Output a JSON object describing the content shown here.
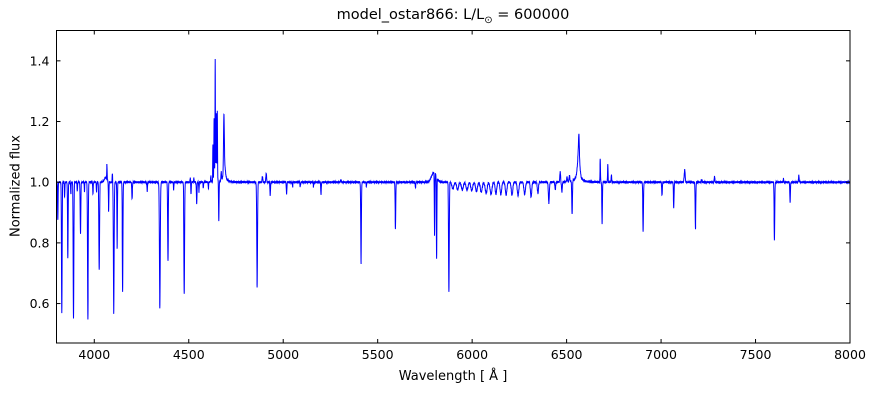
{
  "figure": {
    "title_prefix": "model_ostar866: L/L",
    "title_sub": "⊙",
    "title_suffix": " = 600000",
    "xlabel": "Wavelength [ Å ]",
    "ylabel": "Normalized flux"
  },
  "chart_data": {
    "type": "line",
    "title": "model_ostar866: L/L⊙ = 600000",
    "xlabel": "Wavelength [ Å ]",
    "ylabel": "Normalized flux",
    "xlim": [
      3800,
      8000
    ],
    "ylim": [
      0.47,
      1.5
    ],
    "x_ticks": [
      4000,
      4500,
      5000,
      5500,
      6000,
      6500,
      7000,
      7500,
      8000
    ],
    "y_ticks": [
      0.6,
      0.8,
      1.0,
      1.2,
      1.4
    ],
    "grid": false,
    "legend": "none",
    "line_color": "#0000ff",
    "axis_color": "#000000",
    "background": "#ffffff",
    "continuum": 1.0,
    "sample_step": 0.5,
    "noise": [
      [
        3.1,
        0.002
      ],
      [
        1.3,
        0.0015
      ]
    ],
    "series_name": "normalized_flux",
    "features_comment": "spectral lines: [wavelength_A, peak_or_bottom_flux, sigma_A, optional 'lorentz']",
    "features": [
      [
        3797,
        0.96,
        1.0
      ],
      [
        3807,
        0.875,
        1.3
      ],
      [
        3828,
        0.57,
        1.6
      ],
      [
        3843,
        0.95,
        1.2
      ],
      [
        3860,
        0.75,
        1.6
      ],
      [
        3876,
        0.96,
        1.2
      ],
      [
        3890,
        0.55,
        1.7
      ],
      [
        3910,
        0.97,
        1.2
      ],
      [
        3927,
        0.83,
        1.6
      ],
      [
        3948,
        0.97,
        1.2
      ],
      [
        3966,
        0.55,
        1.8
      ],
      [
        3993,
        0.96,
        1.3
      ],
      [
        4012,
        0.965,
        1.3
      ],
      [
        4026,
        0.71,
        1.8
      ],
      [
        4060,
        1.015,
        7.0
      ],
      [
        4067,
        1.05,
        1.2
      ],
      [
        4076,
        0.9,
        1.3
      ],
      [
        4096,
        1.03,
        1.2
      ],
      [
        4103,
        0.565,
        2.0
      ],
      [
        4121,
        0.78,
        1.4
      ],
      [
        4150,
        0.64,
        1.6
      ],
      [
        4200,
        0.945,
        1.6
      ],
      [
        4280,
        0.97,
        1.3
      ],
      [
        4347,
        0.585,
        2.2
      ],
      [
        4390,
        0.74,
        1.7
      ],
      [
        4420,
        0.975,
        1.2
      ],
      [
        4476,
        0.63,
        1.8
      ],
      [
        4508,
        1.015,
        1.2
      ],
      [
        4512,
        0.96,
        1.2
      ],
      [
        4527,
        1.015,
        1.2
      ],
      [
        4542,
        0.93,
        1.5
      ],
      [
        4554,
        0.965,
        1.2
      ],
      [
        4577,
        0.98,
        1.2
      ],
      [
        4604,
        0.98,
        1.2
      ],
      [
        4617,
        1.02,
        1.5
      ],
      [
        4628,
        1.12,
        1.0
      ],
      [
        4634,
        1.19,
        1.2
      ],
      [
        4640,
        1.35,
        0.9
      ],
      [
        4646,
        1.17,
        1.1
      ],
      [
        4651,
        1.21,
        1.0
      ],
      [
        4643,
        1.06,
        6.0
      ],
      [
        4659,
        0.87,
        1.3
      ],
      [
        4672,
        1.03,
        1.5
      ],
      [
        4686,
        1.17,
        1.9
      ],
      [
        4689,
        1.07,
        5.5,
        "lorentz"
      ],
      [
        4862,
        0.655,
        2.0
      ],
      [
        4890,
        1.02,
        1.8
      ],
      [
        4910,
        1.03,
        1.8
      ],
      [
        4931,
        0.955,
        1.4
      ],
      [
        5018,
        0.96,
        1.4
      ],
      [
        5050,
        0.985,
        1.2
      ],
      [
        5090,
        0.985,
        1.2
      ],
      [
        5160,
        0.985,
        1.2
      ],
      [
        5200,
        0.96,
        1.4
      ],
      [
        5305,
        1.008,
        2.0
      ],
      [
        5412,
        0.73,
        1.7
      ],
      [
        5440,
        0.985,
        1.2
      ],
      [
        5594,
        0.845,
        1.6
      ],
      [
        5700,
        0.98,
        1.3
      ],
      [
        5798,
        1.032,
        13.0
      ],
      [
        5801,
        0.79,
        1.3
      ],
      [
        5812,
        0.73,
        1.3
      ],
      [
        5877,
        0.64,
        1.8
      ],
      [
        5898,
        0.978,
        5.0
      ],
      [
        5923,
        0.975,
        5.0
      ],
      [
        5948,
        0.975,
        5.0
      ],
      [
        5973,
        0.973,
        5.0
      ],
      [
        5998,
        0.972,
        5.0
      ],
      [
        6023,
        0.97,
        5.0
      ],
      [
        6048,
        0.967,
        5.0
      ],
      [
        6074,
        0.963,
        5.0
      ],
      [
        6100,
        0.96,
        5.0
      ],
      [
        6126,
        0.96,
        4.0
      ],
      [
        6152,
        0.958,
        4.0
      ],
      [
        6180,
        0.957,
        4.0
      ],
      [
        6211,
        0.957,
        4.0
      ],
      [
        6243,
        0.955,
        4.0
      ],
      [
        6278,
        0.96,
        4.0
      ],
      [
        6312,
        0.952,
        3.5
      ],
      [
        6348,
        0.965,
        3.0
      ],
      [
        6406,
        0.93,
        2.5
      ],
      [
        6440,
        0.975,
        2.0
      ],
      [
        6466,
        1.035,
        1.8
      ],
      [
        6475,
        0.968,
        2.0
      ],
      [
        6502,
        1.015,
        2.0
      ],
      [
        6515,
        1.02,
        2.0
      ],
      [
        6529,
        0.89,
        1.7
      ],
      [
        6562,
        1.03,
        14.0,
        "lorentz"
      ],
      [
        6564,
        1.07,
        5.5
      ],
      [
        6565,
        1.06,
        2.0
      ],
      [
        6678,
        1.08,
        1.2
      ],
      [
        6688,
        0.865,
        1.5
      ],
      [
        6718,
        1.06,
        1.2
      ],
      [
        6737,
        1.025,
        1.3
      ],
      [
        6905,
        0.84,
        1.7
      ],
      [
        7005,
        0.955,
        1.5
      ],
      [
        7067,
        0.915,
        1.6
      ],
      [
        7125,
        1.04,
        2.5
      ],
      [
        7182,
        0.845,
        1.7
      ],
      [
        7215,
        1.01,
        1.5
      ],
      [
        7283,
        1.02,
        1.6
      ],
      [
        7600,
        0.81,
        1.7
      ],
      [
        7648,
        1.01,
        1.5
      ],
      [
        7683,
        0.935,
        1.5
      ],
      [
        7729,
        1.022,
        1.6
      ]
    ]
  }
}
